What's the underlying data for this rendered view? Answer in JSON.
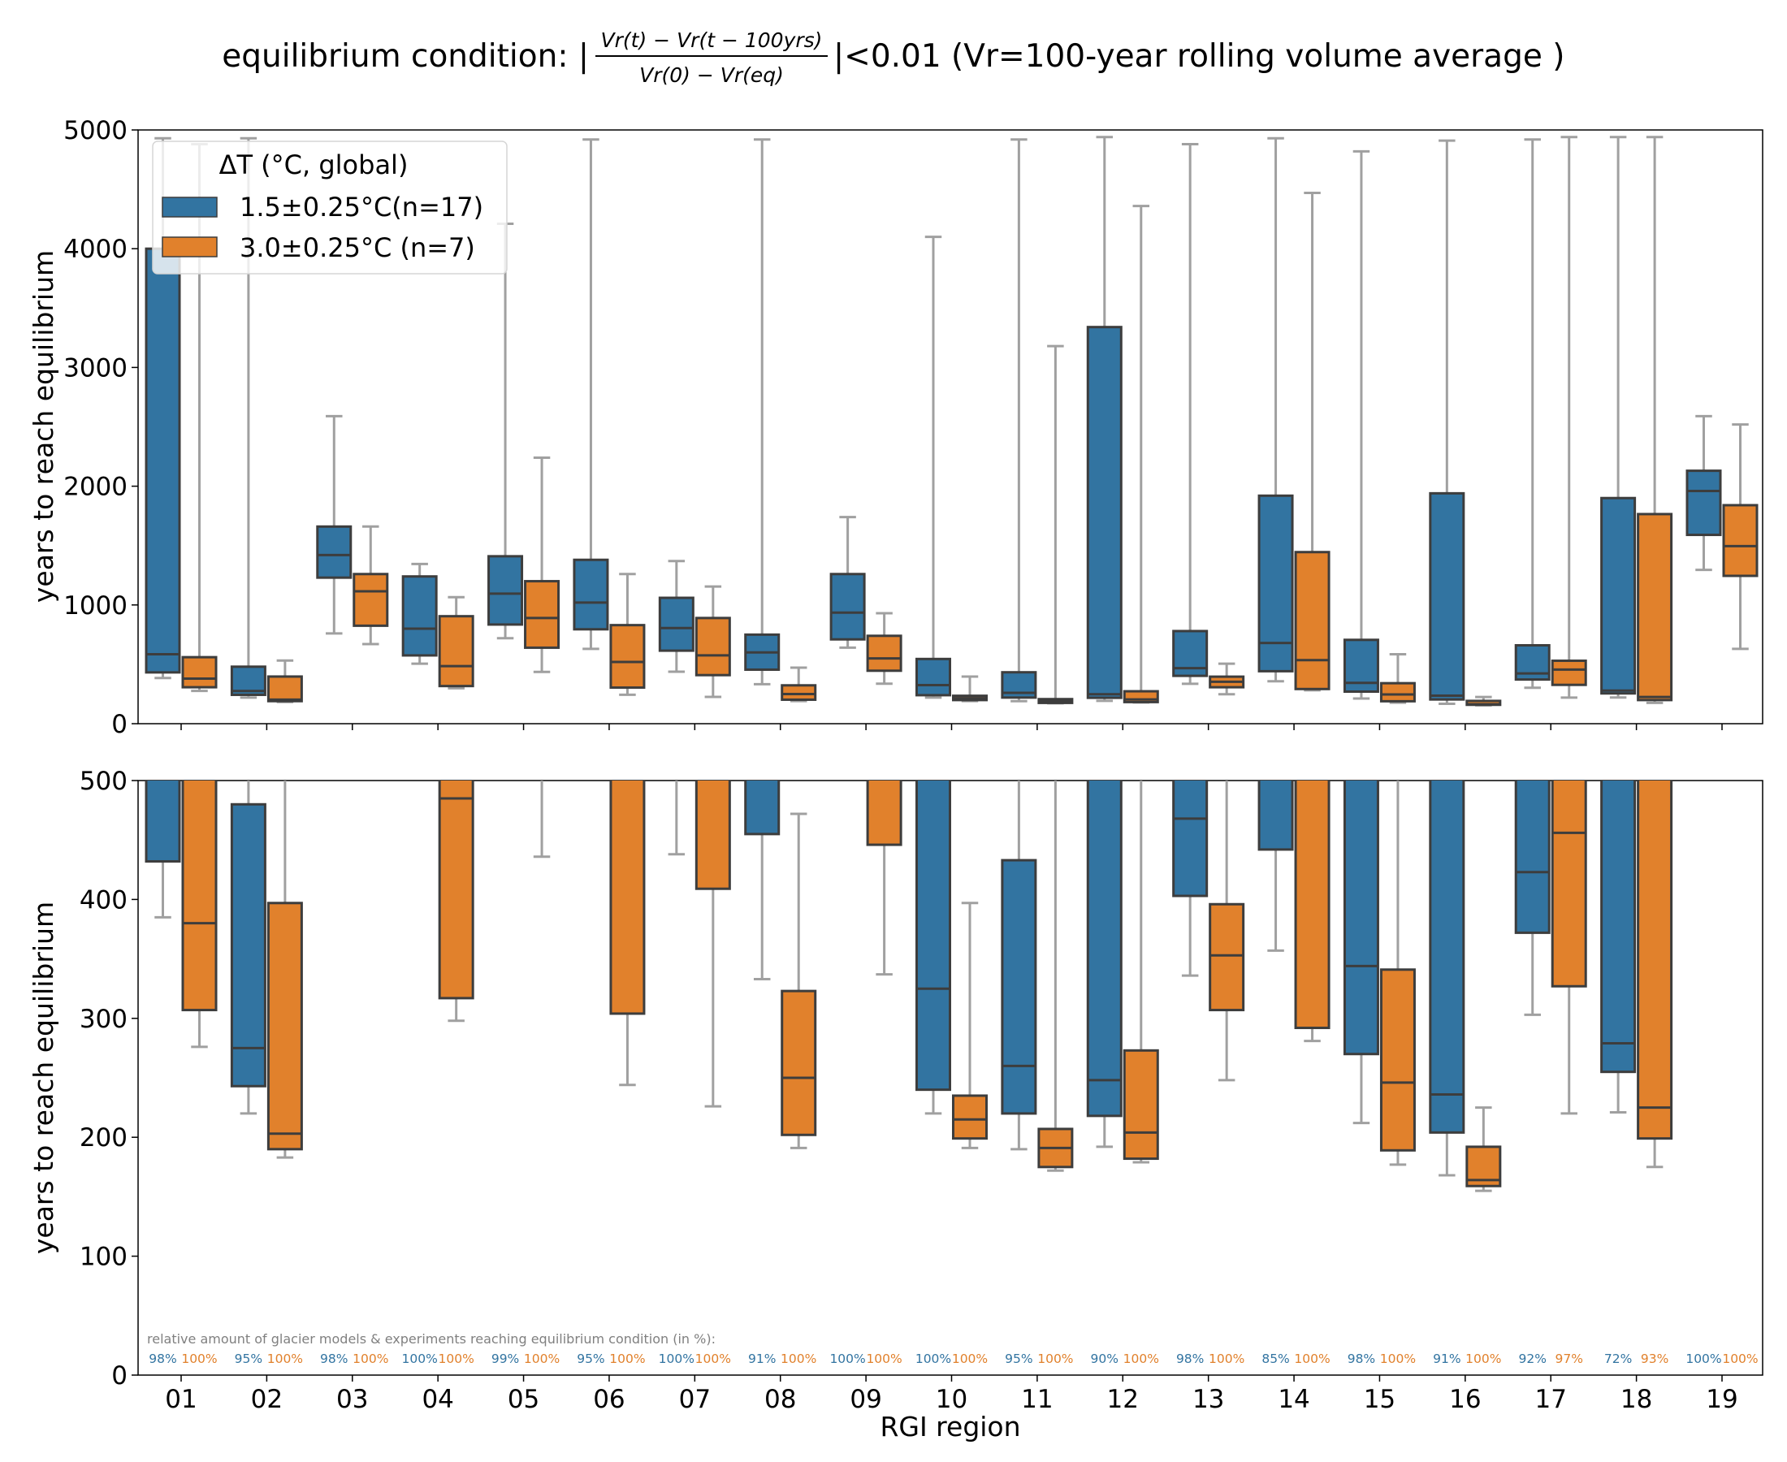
{
  "title": {
    "prefix": "equilibrium condition:  |",
    "numerator": "Vr(t) − Vr(t − 100yrs)",
    "denominator": "Vr(0) − Vr(eq)",
    "suffix": "|<0.01 (Vr=100-year rolling volume average )"
  },
  "colors": {
    "c15": "#3274a1",
    "c30": "#e1812c",
    "edge": "#3d3d3d",
    "whisker": "#a0a0a0"
  },
  "legend": {
    "title": "ΔT (°C, global)",
    "entries": [
      "1.5±0.25°C(n=17)",
      "3.0±0.25°C (n=7)"
    ]
  },
  "note": "relative amount of glacier models & experiments reaching equilibrium condition (in %):",
  "chart_data": {
    "type": "box",
    "xlabel": "RGI region",
    "ylabel": "years to reach equilibrium",
    "categories": [
      "01",
      "02",
      "03",
      "04",
      "05",
      "06",
      "07",
      "08",
      "09",
      "10",
      "11",
      "12",
      "13",
      "14",
      "15",
      "16",
      "17",
      "18",
      "19"
    ],
    "panels": [
      {
        "name": "top",
        "ylim": [
          0,
          5000
        ],
        "yticks": [
          0,
          1000,
          2000,
          3000,
          4000,
          5000
        ]
      },
      {
        "name": "bottom",
        "ylim": [
          0,
          500
        ],
        "yticks": [
          0,
          100,
          200,
          300,
          400,
          500
        ]
      }
    ],
    "series": [
      {
        "name": "1.5±0.25°C(n=17)",
        "boxes": [
          {
            "wlo": 385,
            "q1": 432,
            "med": 585,
            "q3": 4000,
            "whi": 4930
          },
          {
            "wlo": 220,
            "q1": 243,
            "med": 275,
            "q3": 480,
            "whi": 4930
          },
          {
            "wlo": 760,
            "q1": 1230,
            "med": 1420,
            "q3": 1660,
            "whi": 2590
          },
          {
            "wlo": 505,
            "q1": 575,
            "med": 800,
            "q3": 1240,
            "whi": 1345
          },
          {
            "wlo": 720,
            "q1": 835,
            "med": 1095,
            "q3": 1410,
            "whi": 4210
          },
          {
            "wlo": 630,
            "q1": 795,
            "med": 1020,
            "q3": 1380,
            "whi": 4920
          },
          {
            "wlo": 438,
            "q1": 615,
            "med": 805,
            "q3": 1060,
            "whi": 1370
          },
          {
            "wlo": 333,
            "q1": 455,
            "med": 600,
            "q3": 750,
            "whi": 4920
          },
          {
            "wlo": 640,
            "q1": 710,
            "med": 935,
            "q3": 1260,
            "whi": 1740
          },
          {
            "wlo": 220,
            "q1": 240,
            "med": 325,
            "q3": 545,
            "whi": 4100
          },
          {
            "wlo": 190,
            "q1": 220,
            "med": 260,
            "q3": 433,
            "whi": 4920
          },
          {
            "wlo": 192,
            "q1": 218,
            "med": 248,
            "q3": 3340,
            "whi": 4940
          },
          {
            "wlo": 336,
            "q1": 403,
            "med": 468,
            "q3": 780,
            "whi": 4880
          },
          {
            "wlo": 357,
            "q1": 442,
            "med": 680,
            "q3": 1920,
            "whi": 4930
          },
          {
            "wlo": 212,
            "q1": 270,
            "med": 344,
            "q3": 706,
            "whi": 4820
          },
          {
            "wlo": 168,
            "q1": 204,
            "med": 236,
            "q3": 1940,
            "whi": 4910
          },
          {
            "wlo": 303,
            "q1": 372,
            "med": 423,
            "q3": 660,
            "whi": 4920
          },
          {
            "wlo": 221,
            "q1": 255,
            "med": 279,
            "q3": 1900,
            "whi": 4940
          },
          {
            "wlo": 1295,
            "q1": 1590,
            "med": 1960,
            "q3": 2130,
            "whi": 2590
          }
        ],
        "percent_reaching": [
          "98%",
          "95%",
          "98%",
          "100%",
          "99%",
          "95%",
          "100%",
          "91%",
          "100%",
          "100%",
          "95%",
          "90%",
          "98%",
          "85%",
          "98%",
          "91%",
          "92%",
          "72%",
          "100%"
        ]
      },
      {
        "name": "3.0±0.25°C (n=7)",
        "boxes": [
          {
            "wlo": 276,
            "q1": 307,
            "med": 380,
            "q3": 560,
            "whi": 4880
          },
          {
            "wlo": 183,
            "q1": 190,
            "med": 203,
            "q3": 397,
            "whi": 532
          },
          {
            "wlo": 670,
            "q1": 825,
            "med": 1115,
            "q3": 1260,
            "whi": 1660
          },
          {
            "wlo": 298,
            "q1": 317,
            "med": 485,
            "q3": 905,
            "whi": 1065
          },
          {
            "wlo": 436,
            "q1": 640,
            "med": 890,
            "q3": 1200,
            "whi": 2240
          },
          {
            "wlo": 244,
            "q1": 304,
            "med": 520,
            "q3": 830,
            "whi": 1260
          },
          {
            "wlo": 226,
            "q1": 409,
            "med": 575,
            "q3": 890,
            "whi": 1155
          },
          {
            "wlo": 191,
            "q1": 202,
            "med": 250,
            "q3": 323,
            "whi": 472
          },
          {
            "wlo": 337,
            "q1": 446,
            "med": 550,
            "q3": 740,
            "whi": 930
          },
          {
            "wlo": 191,
            "q1": 199,
            "med": 215,
            "q3": 235,
            "whi": 397
          },
          {
            "wlo": 172,
            "q1": 175,
            "med": 191,
            "q3": 207,
            "whi": 3180
          },
          {
            "wlo": 179,
            "q1": 182,
            "med": 204,
            "q3": 273,
            "whi": 4360
          },
          {
            "wlo": 248,
            "q1": 307,
            "med": 353,
            "q3": 396,
            "whi": 505
          },
          {
            "wlo": 281,
            "q1": 292,
            "med": 535,
            "q3": 1445,
            "whi": 4470
          },
          {
            "wlo": 177,
            "q1": 189,
            "med": 246,
            "q3": 341,
            "whi": 585
          },
          {
            "wlo": 155,
            "q1": 159,
            "med": 164,
            "q3": 192,
            "whi": 225
          },
          {
            "wlo": 220,
            "q1": 327,
            "med": 456,
            "q3": 530,
            "whi": 4940
          },
          {
            "wlo": 175,
            "q1": 199,
            "med": 225,
            "q3": 1765,
            "whi": 4940
          },
          {
            "wlo": 630,
            "q1": 1245,
            "med": 1495,
            "q3": 1840,
            "whi": 2520
          }
        ],
        "percent_reaching": [
          "100%",
          "100%",
          "100%",
          "100%",
          "100%",
          "100%",
          "100%",
          "100%",
          "100%",
          "100%",
          "100%",
          "100%",
          "100%",
          "100%",
          "100%",
          "100%",
          "97%",
          "93%",
          "100%"
        ]
      }
    ],
    "legend_position": "upper-left",
    "grid": false
  }
}
